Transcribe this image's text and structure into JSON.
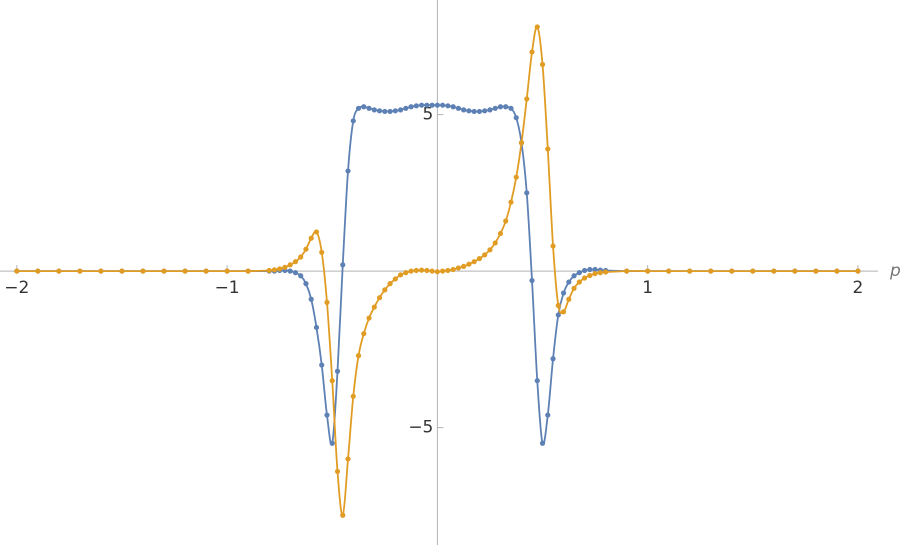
{
  "chart_data": {
    "type": "line",
    "x_label": "p",
    "xlim": [
      -2.08,
      2.2
    ],
    "ylim": [
      -8.75,
      8.66
    ],
    "xticks": [
      {
        "value": -2,
        "label": "−2"
      },
      {
        "value": -1,
        "label": "−1"
      },
      1,
      2
    ],
    "yticks": [
      {
        "value": -5,
        "label": "−5"
      },
      5
    ],
    "x": [
      -2,
      -1.9,
      -1.8,
      -1.7,
      -1.6,
      -1.5,
      -1.4,
      -1.3,
      -1.2,
      -1.1,
      -1,
      -0.9,
      -0.8,
      -0.775,
      -0.75,
      -0.725,
      -0.7,
      -0.675,
      -0.65,
      -0.625,
      -0.6,
      -0.575,
      -0.55,
      -0.525,
      -0.5,
      -0.475,
      -0.45,
      -0.425,
      -0.4,
      -0.375,
      -0.35,
      -0.325,
      -0.3,
      -0.275,
      -0.25,
      -0.225,
      -0.2,
      -0.175,
      -0.15,
      -0.125,
      -0.1,
      -0.075,
      -0.05,
      -0.025,
      0,
      0.025,
      0.05,
      0.075,
      0.1,
      0.125,
      0.15,
      0.175,
      0.2,
      0.225,
      0.25,
      0.275,
      0.3,
      0.325,
      0.35,
      0.375,
      0.4,
      0.425,
      0.45,
      0.475,
      0.5,
      0.525,
      0.55,
      0.575,
      0.6,
      0.625,
      0.65,
      0.675,
      0.7,
      0.725,
      0.75,
      0.775,
      0.8,
      0.9,
      1,
      1.1,
      1.2,
      1.3,
      1.4,
      1.5,
      1.6,
      1.7,
      1.8,
      1.9,
      2
    ],
    "series": [
      {
        "color": "#5e81b5",
        "values": [
          0,
          0,
          0,
          0,
          0,
          0,
          0,
          0,
          0,
          0,
          0,
          0,
          0,
          0,
          0.02,
          0.02,
          0,
          -0.05,
          -0.15,
          -0.4,
          -0.9,
          -1.8,
          -3.0,
          -4.6,
          -5.5,
          -3.2,
          0.2,
          3.2,
          4.8,
          5.2,
          5.25,
          5.2,
          5.15,
          5.12,
          5.1,
          5.1,
          5.12,
          5.15,
          5.2,
          5.25,
          5.28,
          5.3,
          5.3,
          5.3,
          5.3,
          5.3,
          5.28,
          5.25,
          5.2,
          5.15,
          5.12,
          5.1,
          5.1,
          5.12,
          5.15,
          5.2,
          5.25,
          5.25,
          5.2,
          4.9,
          4.1,
          2.5,
          -0.3,
          -3.5,
          -5.5,
          -4.6,
          -2.8,
          -1.4,
          -0.7,
          -0.35,
          -0.15,
          -0.05,
          0.02,
          0.05,
          0.05,
          0.03,
          0.02,
          0,
          0,
          0,
          0,
          0,
          0,
          0,
          0,
          0,
          0,
          0,
          0
        ]
      },
      {
        "color": "#e19c24",
        "values": [
          0,
          0,
          0,
          0,
          0,
          0,
          0,
          0,
          0,
          0,
          0,
          0,
          0.02,
          0.04,
          0.07,
          0.12,
          0.2,
          0.3,
          0.45,
          0.7,
          1.05,
          1.25,
          0.6,
          -1.0,
          -3.5,
          -6.4,
          -7.8,
          -6.0,
          -4.0,
          -2.7,
          -2.0,
          -1.5,
          -1.15,
          -0.85,
          -0.6,
          -0.4,
          -0.25,
          -0.12,
          -0.05,
          0,
          0.02,
          0.03,
          0.02,
          0,
          -0.02,
          0,
          0.02,
          0.05,
          0.1,
          0.15,
          0.22,
          0.3,
          0.4,
          0.52,
          0.68,
          0.9,
          1.2,
          1.6,
          2.2,
          3.0,
          4.1,
          5.5,
          7.0,
          7.8,
          6.6,
          3.9,
          0.8,
          -1.1,
          -1.3,
          -0.9,
          -0.55,
          -0.35,
          -0.22,
          -0.14,
          -0.08,
          -0.05,
          -0.03,
          0,
          0,
          0,
          0,
          0,
          0,
          0,
          0,
          0,
          0,
          0,
          0
        ]
      }
    ]
  }
}
